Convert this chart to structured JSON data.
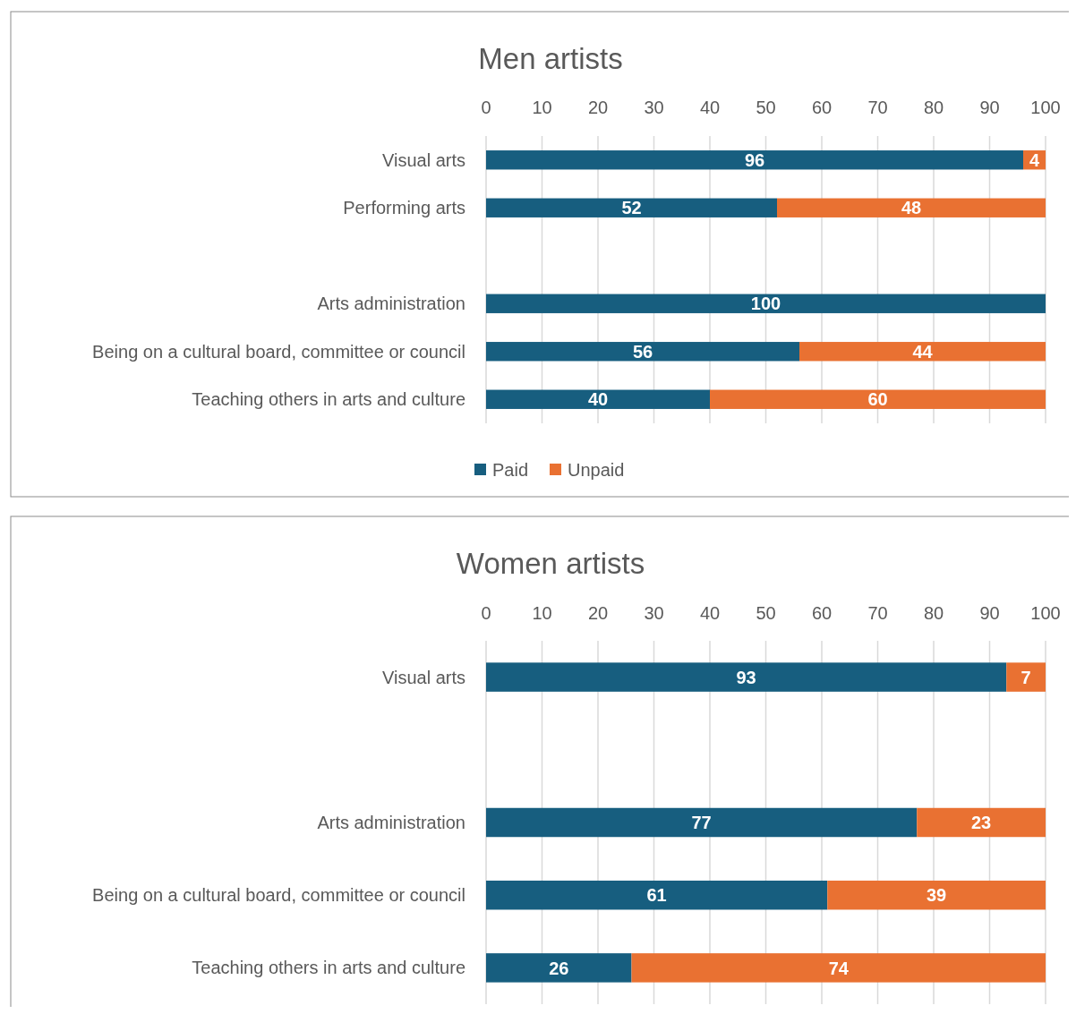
{
  "chart_data": [
    {
      "type": "bar",
      "orientation": "horizontal",
      "stacked": true,
      "title": "Men artists",
      "categories": [
        "Visual arts",
        "Performing arts",
        null,
        "Arts administration",
        "Being on a cultural board, committee or council",
        "Teaching others in arts and culture"
      ],
      "series": [
        {
          "name": "Paid",
          "color": "#175e7f",
          "values": [
            96,
            52,
            null,
            100,
            56,
            40
          ]
        },
        {
          "name": "Unpaid",
          "color": "#e97132",
          "values": [
            4,
            48,
            null,
            null,
            44,
            60
          ]
        }
      ],
      "xlim": [
        0,
        100
      ],
      "xticks": [
        0,
        10,
        20,
        30,
        40,
        50,
        60,
        70,
        80,
        90,
        100
      ],
      "grid": "x",
      "legend": "bottom",
      "data_labels": true
    },
    {
      "type": "bar",
      "orientation": "horizontal",
      "stacked": true,
      "title": "Women artists",
      "categories": [
        "Visual arts",
        null,
        "Arts administration",
        "Being on a cultural board, committee or council",
        "Teaching others in arts and culture"
      ],
      "series": [
        {
          "color": "#175e7f",
          "values": [
            93,
            null,
            77,
            61,
            26
          ]
        },
        {
          "color": "#e97132",
          "values": [
            7,
            null,
            23,
            39,
            74
          ]
        }
      ],
      "xlim": [
        0,
        100
      ],
      "xticks": [
        0,
        10,
        20,
        30,
        40,
        50,
        60,
        70,
        80,
        90,
        100
      ],
      "grid": "x",
      "data_labels": true
    }
  ]
}
